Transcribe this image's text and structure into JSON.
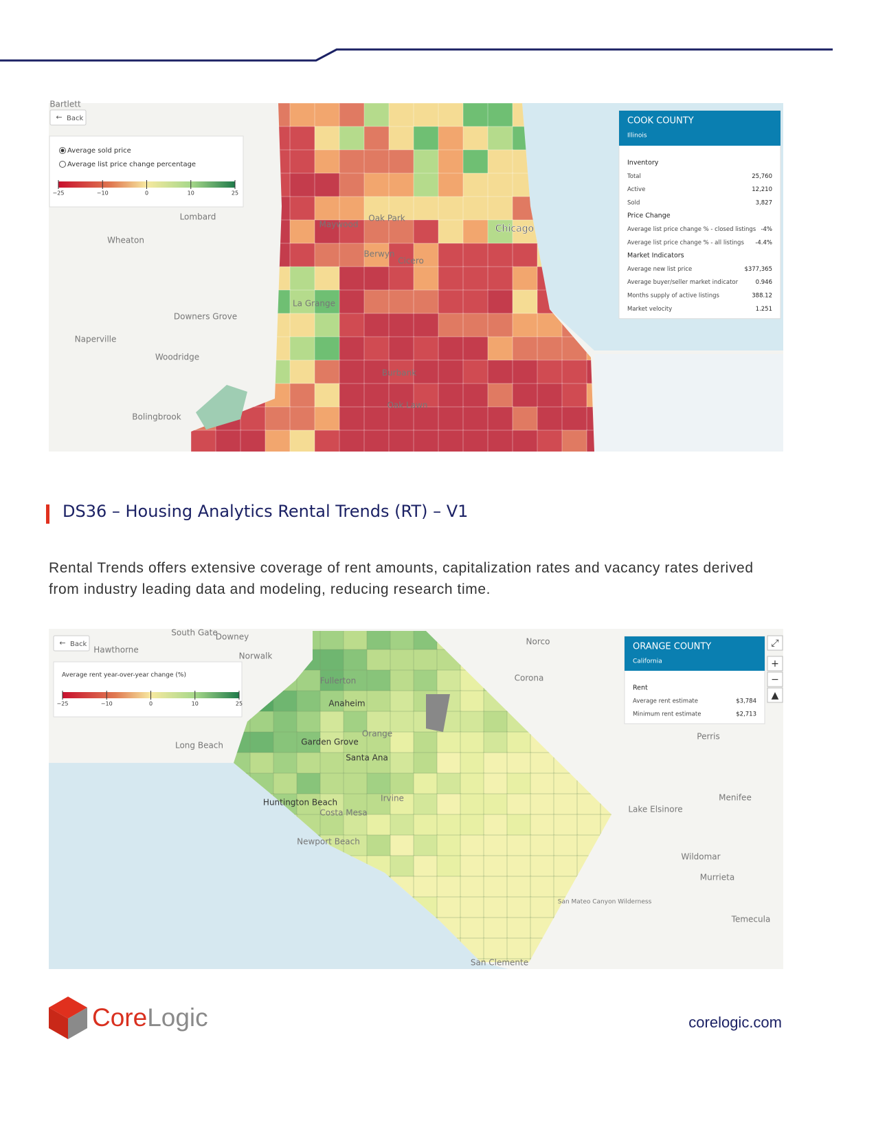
{
  "map1": {
    "back": "Back",
    "legend": {
      "options": [
        "Average sold price",
        "Average list price change percentage"
      ],
      "ticks": [
        "−25",
        "−10",
        "0",
        "10",
        "25"
      ]
    },
    "places": [
      "Bartlett",
      "Lombard",
      "Wheaton",
      "Maywood",
      "Oak Park",
      "Chicago",
      "Berwyn",
      "Cicero",
      "La Grange",
      "Downers Grove",
      "Naperville",
      "Woodridge",
      "Burbank",
      "Oak Lawn",
      "Bolingbrook"
    ],
    "panel": {
      "title": "COOK COUNTY",
      "subtitle": "Illinois",
      "sections": [
        {
          "heading": "Inventory",
          "rows": [
            [
              "Total",
              "25,760"
            ],
            [
              "Active",
              "12,210"
            ],
            [
              "Sold",
              "3,827"
            ]
          ]
        },
        {
          "heading": "Price Change",
          "rows": [
            [
              "Average list price change % - closed listings",
              "-4%"
            ],
            [
              "Average list price change % - all listings",
              "-4.4%"
            ]
          ]
        },
        {
          "heading": "Market Indicators",
          "rows": [
            [
              "Average new list price",
              "$377,365"
            ],
            [
              "Average buyer/seller market indicator",
              "0.946"
            ],
            [
              "Months supply of active listings",
              "388.12"
            ],
            [
              "Market velocity",
              "1.251"
            ]
          ]
        }
      ]
    }
  },
  "section": {
    "heading": "DS36 – Housing Analytics Rental Trends (RT) – V1",
    "body": "Rental Trends offers extensive coverage of rent amounts, capitalization rates and vacancy rates derived from industry leading data and modeling, reducing research time."
  },
  "map2": {
    "back": "Back",
    "legend": {
      "title": "Average rent year-over-year change (%)",
      "ticks": [
        "−25",
        "−10",
        "0",
        "10",
        "25"
      ]
    },
    "places": [
      "South Gate",
      "Downey",
      "Hawthorne",
      "Norwalk",
      "Norco",
      "Corona",
      "Fullerton",
      "Anaheim",
      "Orange",
      "Long Beach",
      "Garden Grove",
      "Santa Ana",
      "Perris",
      "Huntington Beach",
      "Irvine",
      "Costa Mesa",
      "Menifee",
      "Lake Elsinore",
      "Newport Beach",
      "Wildomar",
      "Murrieta",
      "San Mateo Canyon Wilderness",
      "Temecula",
      "San Clemente"
    ],
    "panel": {
      "title": "ORANGE COUNTY",
      "subtitle": "California",
      "sections": [
        {
          "heading": "Rent",
          "rows": [
            [
              "Average rent estimate",
              "$3,784"
            ],
            [
              "Minimum rent estimate",
              "$2,713"
            ]
          ]
        }
      ]
    }
  },
  "footer": {
    "brand_core": "Core",
    "brand_logic": "Logic",
    "url": "corelogic.com"
  }
}
